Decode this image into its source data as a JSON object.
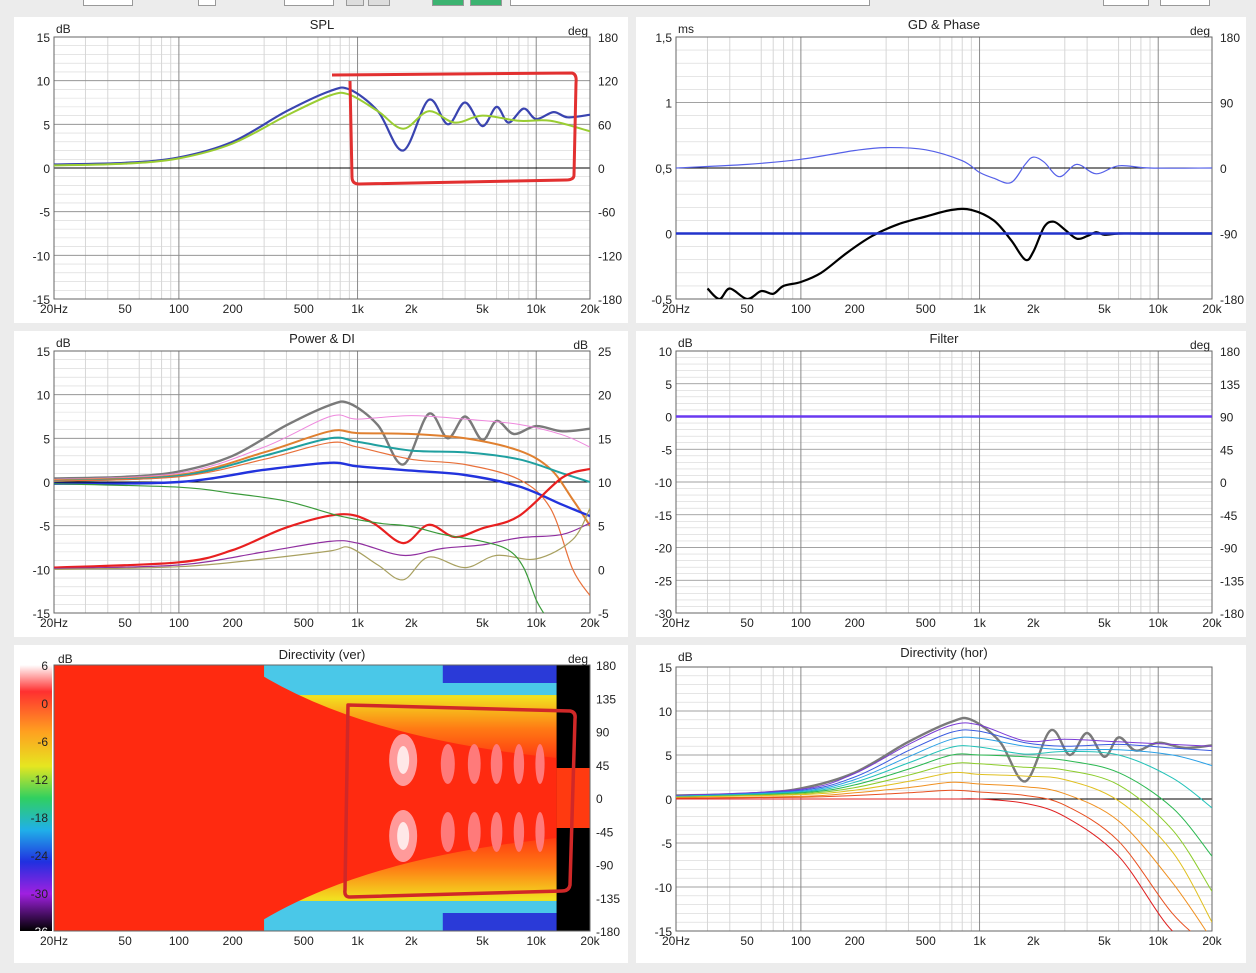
{
  "colors": {
    "grid_major": "#8a8a8a",
    "grid_minor": "#d6d6d6",
    "zero_line": "#000000",
    "annotation": "#e23030"
  },
  "x_ticks": [
    "20Hz",
    "50",
    "100",
    "200",
    "500",
    "1k",
    "2k",
    "5k",
    "10k",
    "20k"
  ],
  "panels": {
    "spl": {
      "title": "SPL",
      "left_unit": "dB",
      "right_unit": "deg",
      "left_ticks": [
        "15",
        "10",
        "5",
        "0",
        "-5",
        "-10",
        "-15"
      ],
      "right_ticks": [
        "180",
        "120",
        "60",
        "0",
        "-60",
        "-120",
        "-180"
      ]
    },
    "gd": {
      "title": "GD & Phase",
      "left_unit": "ms",
      "right_unit": "deg",
      "left_ticks": [
        "1,5",
        "1",
        "0,5",
        "0",
        "-0,5"
      ],
      "right_ticks": [
        "180",
        "90",
        "0",
        "-90",
        "-180"
      ]
    },
    "power": {
      "title": "Power & DI",
      "left_unit": "dB",
      "right_unit": "dB",
      "left_ticks": [
        "15",
        "10",
        "5",
        "0",
        "-5",
        "-10",
        "-15"
      ],
      "right_ticks": [
        "25",
        "20",
        "15",
        "10",
        "5",
        "0",
        "-5"
      ]
    },
    "filter": {
      "title": "Filter",
      "left_unit": "dB",
      "right_unit": "deg",
      "left_ticks": [
        "10",
        "5",
        "0",
        "-5",
        "-10",
        "-15",
        "-20",
        "-25",
        "-30"
      ],
      "right_ticks": [
        "180",
        "135",
        "90",
        "45",
        "0",
        "-45",
        "-90",
        "-135",
        "-180"
      ]
    },
    "dirver": {
      "title": "Directivity (ver)",
      "left_unit": "dB",
      "right_unit": "deg",
      "scale_ticks": [
        "6",
        "0",
        "-6",
        "-12",
        "-18",
        "-24",
        "-30",
        "-36"
      ],
      "right_ticks": [
        "180",
        "135",
        "90",
        "45",
        "0",
        "-45",
        "-90",
        "-135",
        "-180"
      ]
    },
    "dirhor": {
      "title": "Directivity (hor)",
      "left_unit": "dB",
      "left_ticks": [
        "15",
        "10",
        "5",
        "0",
        "-5",
        "-10",
        "-15"
      ]
    }
  },
  "chart_data": [
    {
      "type": "line",
      "title": "SPL",
      "xscale": "log",
      "xlim": [
        20,
        20000
      ],
      "ylim": [
        -15,
        15
      ],
      "y2lim": [
        -180,
        180
      ],
      "series": [
        {
          "color": "#3a44b0",
          "x": [
            20,
            50,
            100,
            200,
            400,
            700,
            900,
            1300,
            1800,
            2500,
            3200,
            4000,
            5000,
            6000,
            7000,
            8500,
            10000,
            12500,
            15000,
            20000
          ],
          "y": [
            0.4,
            0.6,
            1.2,
            3,
            6.5,
            8.8,
            9,
            6.5,
            2,
            7.8,
            5,
            7.5,
            4.8,
            7,
            5.2,
            6.8,
            5.6,
            6.4,
            5.8,
            6.1
          ]
        },
        {
          "color": "#9acd32",
          "x": [
            20,
            50,
            100,
            200,
            400,
            700,
            900,
            1300,
            1800,
            2500,
            3500,
            5000,
            8000,
            12000,
            20000
          ],
          "y": [
            0.3,
            0.5,
            1.1,
            2.8,
            6,
            8.3,
            8.4,
            6.5,
            4.5,
            6.5,
            5.2,
            6,
            5.4,
            5.4,
            4.2
          ]
        }
      ]
    },
    {
      "type": "line",
      "title": "GD & Phase",
      "xscale": "log",
      "xlim": [
        20,
        20000
      ],
      "ylim": [
        -0.5,
        1.5
      ],
      "y2lim": [
        -180,
        180
      ],
      "series": [
        {
          "color": "#5560e8",
          "axis": "right",
          "x": [
            20,
            50,
            100,
            200,
            300,
            500,
            800,
            1000,
            1200,
            1500,
            1800,
            2000,
            2300,
            2800,
            3500,
            4500,
            6000,
            9000,
            20000
          ],
          "y": [
            0,
            5,
            12,
            24,
            28,
            25,
            10,
            -6,
            -14,
            -20,
            5,
            15,
            8,
            -12,
            5,
            -8,
            3,
            0,
            0
          ]
        },
        {
          "color": "#000000",
          "axis": "left",
          "x": [
            30,
            35,
            40,
            50,
            60,
            70,
            80,
            100,
            130,
            180,
            250,
            350,
            500,
            700,
            900,
            1200,
            1500,
            1800,
            2000,
            2300,
            2600,
            3000,
            3500,
            4000,
            4500,
            5000,
            6000,
            8000,
            20000
          ],
          "y": [
            -0.42,
            -0.5,
            -0.42,
            -0.5,
            -0.44,
            -0.46,
            -0.4,
            -0.37,
            -0.3,
            -0.15,
            -0.02,
            0.07,
            0.13,
            0.18,
            0.18,
            0.1,
            -0.05,
            -0.2,
            -0.14,
            0.05,
            0.09,
            0.03,
            -0.04,
            -0.02,
            0.01,
            -0.01,
            0,
            0,
            0
          ]
        },
        {
          "color": "#2233cc",
          "axis": "left",
          "x": [
            20,
            20000
          ],
          "y": [
            0,
            0
          ]
        }
      ]
    },
    {
      "type": "line",
      "title": "Power & DI",
      "xscale": "log",
      "xlim": [
        20,
        20000
      ],
      "ylim": [
        -15,
        15
      ],
      "series": [
        {
          "color": "#7a7a7a",
          "x": [
            20,
            50,
            100,
            200,
            400,
            700,
            900,
            1300,
            1800,
            2500,
            3200,
            4000,
            5000,
            6000,
            7500,
            10000,
            14000,
            20000
          ],
          "y": [
            0.4,
            0.6,
            1.2,
            3,
            6.5,
            8.8,
            9,
            6.5,
            2,
            7.8,
            5,
            7.5,
            4.8,
            7,
            5.5,
            6.4,
            5.8,
            6.1
          ]
        },
        {
          "color": "#ee88dd",
          "x": [
            20,
            100,
            300,
            700,
            1000,
            2000,
            4000,
            8000,
            14000,
            20000
          ],
          "y": [
            0.3,
            1,
            4,
            7.5,
            7.2,
            7.6,
            7.2,
            6.6,
            5.4,
            4
          ]
        },
        {
          "color": "#e08030",
          "x": [
            20,
            100,
            300,
            700,
            1000,
            2000,
            4000,
            8000,
            12000,
            16000,
            20000
          ],
          "y": [
            0.2,
            0.8,
            3.4,
            5.8,
            5.6,
            5.5,
            5,
            3.6,
            1.5,
            -2,
            -5
          ]
        },
        {
          "color": "#20a0a0",
          "x": [
            20,
            100,
            300,
            700,
            1000,
            2000,
            4000,
            8000,
            14000,
            20000
          ],
          "y": [
            0.1,
            0.7,
            3,
            5,
            4.6,
            3.6,
            3.4,
            2.6,
            1,
            0
          ]
        },
        {
          "color": "#e8703a",
          "x": [
            20,
            100,
            300,
            700,
            1000,
            2000,
            4000,
            8000,
            12000,
            16000,
            20000
          ],
          "y": [
            0.1,
            0.6,
            2.6,
            4.5,
            4,
            2.6,
            2,
            0.3,
            -3,
            -10,
            -13
          ]
        },
        {
          "color": "#2233dd",
          "x": [
            20,
            100,
            300,
            700,
            1000,
            2000,
            4000,
            8000,
            14000,
            20000
          ],
          "y": [
            -0.2,
            0,
            1.4,
            2.2,
            1.8,
            1.3,
            0.8,
            -0.5,
            -2.6,
            -3.9
          ]
        },
        {
          "color": "#e82020",
          "x": [
            20,
            100,
            200,
            400,
            800,
            1200,
            1800,
            2500,
            3500,
            5000,
            8000,
            14000,
            20000
          ],
          "y": [
            -9.8,
            -9.2,
            -7.8,
            -5.2,
            -3.7,
            -4.6,
            -7,
            -4.9,
            -6.3,
            -5.3,
            -3.9,
            0.5,
            1.5
          ]
        },
        {
          "color": "#9030a0",
          "x": [
            20,
            100,
            300,
            700,
            1000,
            1800,
            3000,
            5000,
            8000,
            14000,
            20000
          ],
          "y": [
            -9.9,
            -9.5,
            -8,
            -6.8,
            -7,
            -8.4,
            -7.6,
            -7.2,
            -6.4,
            -6,
            -4.7
          ]
        },
        {
          "color": "#a8a060",
          "x": [
            20,
            100,
            300,
            700,
            900,
            1300,
            1800,
            2500,
            4000,
            6000,
            10000,
            16000,
            20000
          ],
          "y": [
            -10,
            -9.7,
            -8.8,
            -7.9,
            -7.5,
            -9.5,
            -11.2,
            -8.6,
            -9.8,
            -8.4,
            -8.8,
            -6.6,
            -3
          ]
        },
        {
          "color": "#3a9a3a",
          "x": [
            20,
            100,
            200,
            400,
            800,
            1300,
            2000,
            3000,
            5000,
            7000,
            8500,
            10000,
            11000
          ],
          "y": [
            -0.2,
            -0.6,
            -1.3,
            -2.2,
            -3.9,
            -4.7,
            -5.1,
            -6,
            -6.8,
            -7.8,
            -9.8,
            -13.5,
            -15
          ]
        }
      ]
    },
    {
      "type": "line",
      "title": "Filter",
      "xscale": "log",
      "xlim": [
        20,
        20000
      ],
      "ylim": [
        -30,
        10
      ],
      "series": [
        {
          "color": "#6a3af0",
          "x": [
            20,
            20000
          ],
          "y": [
            0,
            0
          ]
        }
      ]
    },
    {
      "type": "heatmap",
      "title": "Directivity (ver)",
      "xscale": "log",
      "xlim": [
        20,
        20000
      ],
      "ylim": [
        -180,
        180
      ],
      "zlim": [
        -36,
        6
      ]
    },
    {
      "type": "line",
      "title": "Directivity (hor)",
      "xscale": "log",
      "xlim": [
        20,
        20000
      ],
      "ylim": [
        -15,
        15
      ],
      "series": [
        {
          "color": "#7a7a7a",
          "x": [
            20,
            50,
            100,
            200,
            400,
            700,
            900,
            1300,
            1800,
            2500,
            3200,
            4000,
            5000,
            6000,
            7500,
            10000,
            14000,
            20000
          ],
          "y": [
            0.4,
            0.6,
            1.2,
            3,
            6.5,
            8.8,
            9,
            6.5,
            2,
            7.8,
            5,
            7.5,
            4.8,
            7,
            5.5,
            6.4,
            5.8,
            6.1
          ]
        },
        {
          "color": "#7b3ad6",
          "x": [
            20,
            100,
            200,
            400,
            700,
            1000,
            1800,
            3000,
            6000,
            12000,
            20000
          ],
          "y": [
            0.4,
            1.1,
            2.9,
            6.2,
            8.4,
            8.4,
            6.6,
            6.8,
            6.5,
            6.2,
            6
          ]
        },
        {
          "color": "#3a5ae0",
          "x": [
            20,
            100,
            200,
            400,
            700,
            1000,
            1800,
            3000,
            6000,
            12000,
            20000
          ],
          "y": [
            0.3,
            1,
            2.5,
            5.5,
            7.6,
            7.7,
            6.4,
            6,
            6.2,
            5.8,
            5.5
          ]
        },
        {
          "color": "#2aa0e6",
          "x": [
            20,
            100,
            200,
            400,
            700,
            1000,
            1800,
            3000,
            6000,
            12000,
            20000
          ],
          "y": [
            0.3,
            0.9,
            2.2,
            4.8,
            6.8,
            6.9,
            6,
            5.6,
            5.6,
            5,
            3.8
          ]
        },
        {
          "color": "#22c2b8",
          "x": [
            20,
            100,
            200,
            400,
            700,
            1000,
            1800,
            3000,
            6000,
            12000,
            20000
          ],
          "y": [
            0.3,
            0.8,
            1.9,
            4.1,
            5.9,
            5.9,
            5.1,
            5.4,
            5,
            2.4,
            -1
          ]
        },
        {
          "color": "#2ab850",
          "x": [
            20,
            100,
            200,
            400,
            700,
            1000,
            1800,
            3000,
            6000,
            12000,
            20000
          ],
          "y": [
            0.2,
            0.7,
            1.6,
            3.4,
            5,
            5,
            4.8,
            4.4,
            3,
            -1,
            -6.5
          ]
        },
        {
          "color": "#8ccc2a",
          "x": [
            20,
            100,
            200,
            400,
            700,
            1000,
            1800,
            3000,
            6000,
            12000,
            20000
          ],
          "y": [
            0.2,
            0.6,
            1.3,
            2.7,
            4,
            4,
            3.6,
            3.3,
            1.6,
            -3.5,
            -10.5
          ]
        },
        {
          "color": "#e0c020",
          "x": [
            20,
            100,
            200,
            400,
            700,
            1000,
            1800,
            3000,
            6000,
            12000,
            20000
          ],
          "y": [
            0.2,
            0.5,
            1,
            2,
            3,
            2.8,
            2.6,
            2.2,
            -0.2,
            -6,
            -14
          ]
        },
        {
          "color": "#f09020",
          "x": [
            20,
            100,
            200,
            400,
            700,
            1000,
            1800,
            3000,
            6000,
            12000,
            20000
          ],
          "y": [
            0.1,
            0.3,
            0.7,
            1.3,
            1.9,
            1.7,
            1.4,
            0.6,
            -2.5,
            -9.5,
            -16
          ]
        },
        {
          "color": "#e85020",
          "x": [
            20,
            100,
            200,
            400,
            700,
            1000,
            1800,
            3000,
            6000,
            12000,
            20000
          ],
          "y": [
            0.1,
            0.2,
            0.4,
            0.7,
            1,
            0.8,
            0.4,
            -0.7,
            -4.8,
            -13,
            -17
          ]
        },
        {
          "color": "#e02020",
          "x": [
            20,
            100,
            200,
            400,
            700,
            1000,
            1800,
            3000,
            6000,
            12000,
            20000
          ],
          "y": [
            0,
            0,
            0,
            0,
            0,
            0,
            -0.5,
            -2,
            -6.5,
            -15,
            -17
          ]
        }
      ]
    }
  ]
}
